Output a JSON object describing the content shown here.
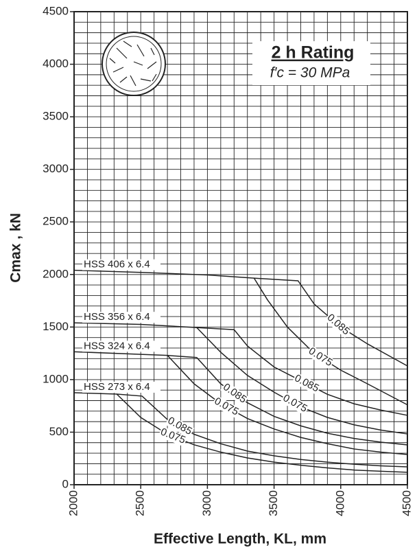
{
  "chart_data": {
    "type": "line",
    "title": "2 h Rating",
    "subtitle": "f′c = 30 MPa",
    "xlabel": "Effective Length, KL, mm",
    "ylabel": "Cmax , kN",
    "xlim": [
      2000,
      4500
    ],
    "xticks": [
      2000,
      2500,
      3000,
      3500,
      4000,
      4500
    ],
    "ylim": [
      0,
      4500
    ],
    "yticks": [
      0,
      500,
      1000,
      1500,
      2000,
      2500,
      3000,
      3500,
      4000,
      4500
    ],
    "grid": true,
    "grid_step": [
      100,
      100
    ],
    "groups": [
      {
        "name": "HSS 406 x 6.4",
        "series": [
          {
            "name": "0.085",
            "color": "#222222",
            "x": [
              2000,
              2500,
              3000,
              3350,
              3680,
              3800,
              4000,
              4200,
              4500
            ],
            "values": [
              2040,
              2020,
              1995,
              1965,
              1940,
              1720,
              1500,
              1340,
              1130
            ]
          },
          {
            "name": "0.075",
            "color": "#222222",
            "x": [
              3350,
              3450,
              3600,
              3800,
              4000,
              4200,
              4500
            ],
            "values": [
              1965,
              1760,
              1500,
              1250,
              1090,
              960,
              760
            ]
          }
        ]
      },
      {
        "name": "HSS 356 x 6.4",
        "series": [
          {
            "name": "0.085",
            "color": "#222222",
            "x": [
              2000,
              2500,
              2920,
              3200,
              3300,
              3500,
              3700,
              3900,
              4100,
              4300,
              4500
            ],
            "values": [
              1540,
              1525,
              1495,
              1475,
              1320,
              1120,
              990,
              860,
              770,
              710,
              660
            ]
          },
          {
            "name": "0.075",
            "color": "#222222",
            "x": [
              2920,
              3100,
              3300,
              3500,
              3700,
              3900,
              4100,
              4300,
              4500
            ],
            "values": [
              1495,
              1260,
              1040,
              880,
              740,
              640,
              570,
              520,
              483
            ]
          }
        ]
      },
      {
        "name": "HSS 324 x 6.4",
        "series": [
          {
            "name": "0.085",
            "color": "#222222",
            "x": [
              2000,
              2500,
              2700,
              2920,
              3100,
              3300,
              3500,
              3700,
              3900,
              4100,
              4300,
              4500
            ],
            "values": [
              1265,
              1240,
              1230,
              1210,
              960,
              780,
              650,
              560,
              490,
              440,
              405,
              379
            ]
          },
          {
            "name": "0.075",
            "color": "#222222",
            "x": [
              2700,
              2900,
              3100,
              3300,
              3500,
              3700,
              3900,
              4100,
              4300,
              4500
            ],
            "values": [
              1230,
              960,
              770,
              630,
              530,
              450,
              390,
              340,
              310,
              287
            ]
          }
        ]
      },
      {
        "name": "HSS 273 x 6.4",
        "series": [
          {
            "name": "0.085",
            "color": "#222222",
            "x": [
              2000,
              2320,
              2510,
              2700,
              2900,
              3100,
              3300,
              3500,
              3700,
              3900,
              4100,
              4300,
              4500
            ],
            "values": [
              875,
              862,
              843,
              620,
              480,
              390,
              320,
              275,
              240,
              215,
              195,
              180,
              170
            ]
          },
          {
            "name": "0.075",
            "color": "#222222",
            "x": [
              2320,
              2500,
              2700,
              2900,
              3100,
              3300,
              3500,
              3700,
              3900,
              4100,
              4300,
              4500
            ],
            "values": [
              862,
              640,
              480,
              380,
              310,
              255,
              215,
              185,
              160,
              140,
              128,
              118
            ]
          }
        ]
      }
    ]
  }
}
